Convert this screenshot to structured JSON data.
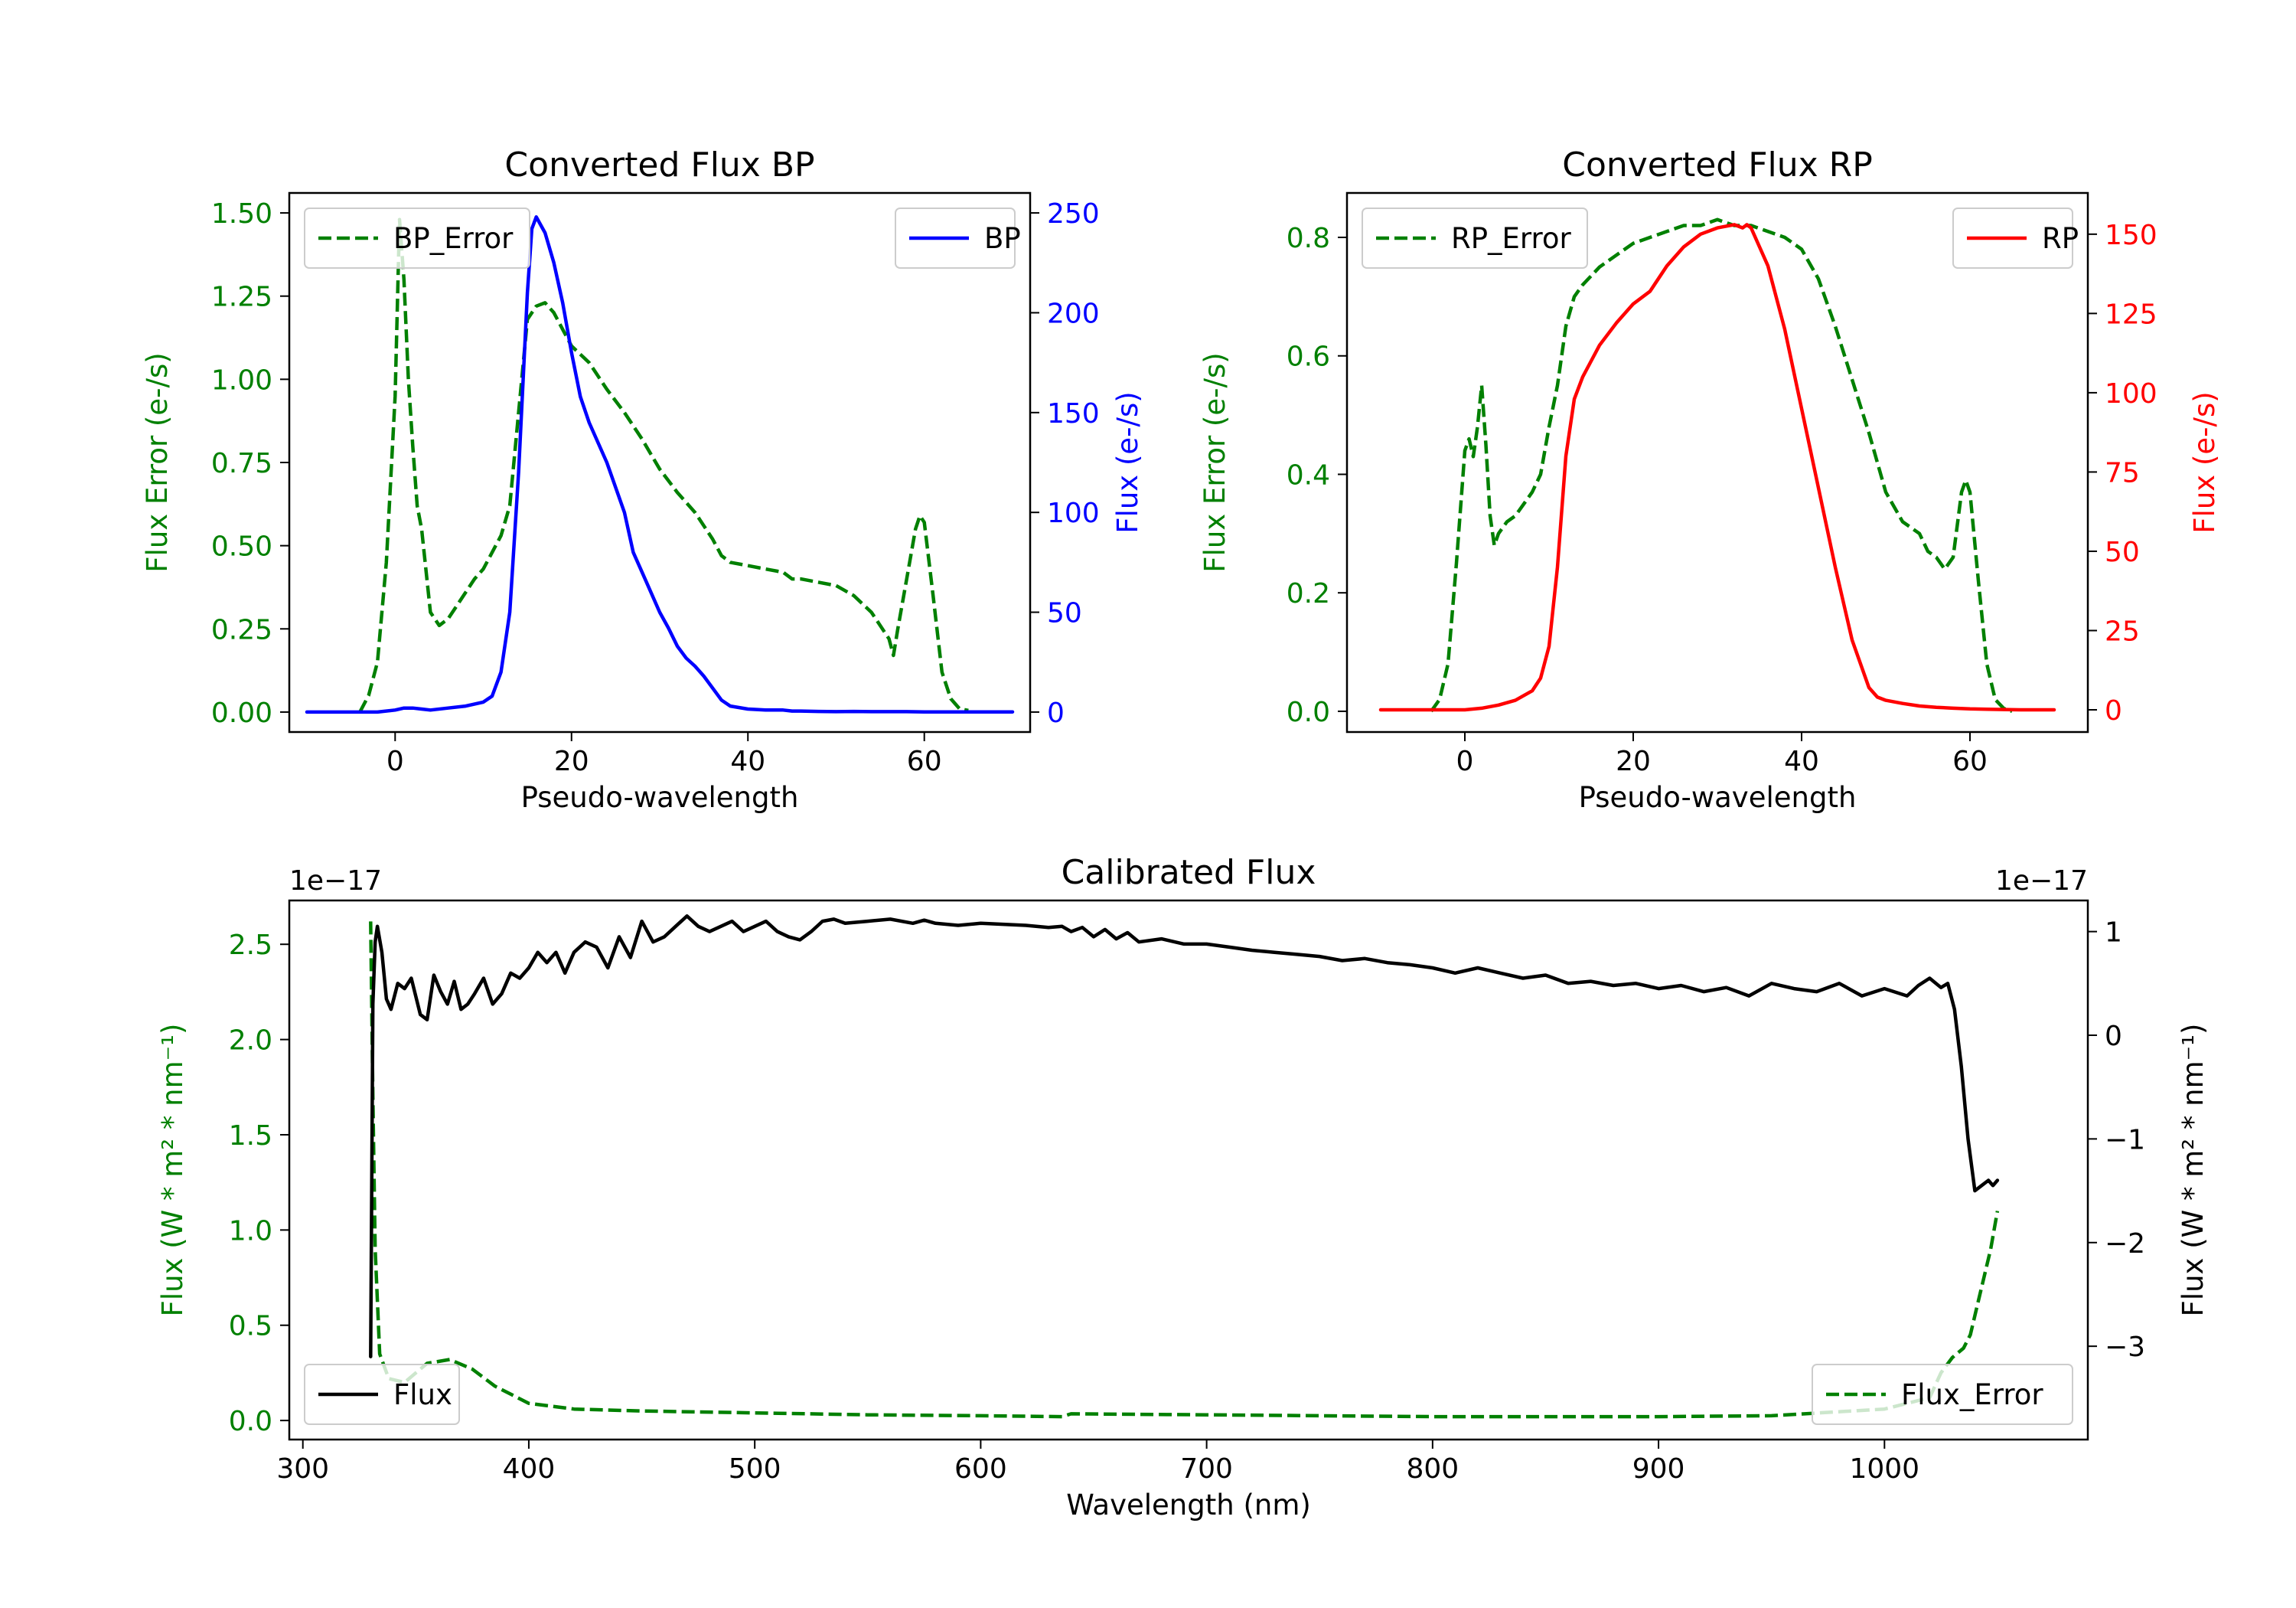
{
  "colors": {
    "green": "#008000",
    "blue": "#0000ff",
    "red": "#ff0000",
    "black": "#000000"
  },
  "chart_data": [
    {
      "id": "bp",
      "type": "line",
      "title": "Converted Flux BP",
      "xlabel": "Pseudo-wavelength",
      "ylabel_left": "Flux Error (e-/s)",
      "ylabel_right": "Flux (e-/s)",
      "xlim": [
        -12,
        72
      ],
      "ylim_left": [
        -0.06,
        1.56
      ],
      "ylim_right": [
        -10,
        260
      ],
      "xticks": [
        "0",
        "20",
        "40",
        "60"
      ],
      "yticks_left": [
        "0.00",
        "0.25",
        "0.50",
        "0.75",
        "1.00",
        "1.25",
        "1.50"
      ],
      "yticks_right": [
        "0",
        "50",
        "100",
        "150",
        "200",
        "250"
      ],
      "legend_left": "BP_Error",
      "legend_right": "BP",
      "series": [
        {
          "name": "BP_Error",
          "axis": "left",
          "color": "#008000",
          "style": "dashed",
          "x": [
            -4,
            -3,
            -2,
            -1,
            0,
            0.5,
            1,
            1.5,
            2,
            2.5,
            3,
            4,
            5,
            6,
            7,
            8,
            9,
            10,
            12,
            13,
            14,
            15,
            16,
            17,
            18,
            19,
            20,
            22,
            24,
            26,
            28,
            30,
            32,
            34,
            36,
            37,
            38,
            40,
            42,
            44,
            45,
            46,
            48,
            50,
            52,
            54,
            56,
            56.5,
            57,
            58,
            59,
            59.5,
            60,
            61,
            62,
            63,
            64,
            65
          ],
          "y": [
            0,
            0.05,
            0.15,
            0.45,
            0.95,
            1.48,
            1.3,
            1.0,
            0.8,
            0.62,
            0.55,
            0.3,
            0.26,
            0.28,
            0.32,
            0.36,
            0.4,
            0.43,
            0.53,
            0.62,
            0.9,
            1.18,
            1.22,
            1.23,
            1.2,
            1.15,
            1.1,
            1.05,
            0.97,
            0.9,
            0.82,
            0.73,
            0.66,
            0.6,
            0.52,
            0.47,
            0.45,
            0.44,
            0.43,
            0.42,
            0.4,
            0.4,
            0.39,
            0.38,
            0.35,
            0.3,
            0.22,
            0.17,
            0.25,
            0.4,
            0.55,
            0.59,
            0.57,
            0.35,
            0.12,
            0.04,
            0.01,
            0.005
          ]
        },
        {
          "name": "BP",
          "axis": "right",
          "color": "#0000ff",
          "style": "solid",
          "x": [
            -10,
            -5,
            -2,
            0,
            1,
            2,
            3,
            4,
            6,
            8,
            10,
            11,
            12,
            13,
            14,
            15,
            15.5,
            16,
            17,
            18,
            19,
            20,
            21,
            22,
            24,
            26,
            27,
            28,
            30,
            31,
            32,
            33,
            34,
            35,
            36,
            37,
            38,
            40,
            42,
            44,
            45,
            46,
            48,
            50,
            52,
            54,
            56,
            58,
            60,
            62,
            64,
            66,
            68,
            70
          ],
          "y": [
            0,
            0,
            0,
            1,
            2,
            2,
            1.5,
            1,
            2,
            3,
            5,
            8,
            20,
            50,
            120,
            210,
            242,
            248,
            240,
            225,
            205,
            180,
            158,
            145,
            125,
            100,
            80,
            70,
            50,
            42,
            33,
            27,
            23,
            18,
            12,
            6,
            3,
            1.5,
            1,
            1,
            0.5,
            0.5,
            0.3,
            0.2,
            0.3,
            0.2,
            0.2,
            0.2,
            0.1,
            0.1,
            0.1,
            0.1,
            0.1,
            0.1
          ]
        }
      ]
    },
    {
      "id": "rp",
      "type": "line",
      "title": "Converted Flux RP",
      "xlabel": "Pseudo-wavelength",
      "ylabel_left": "Flux Error (e-/s)",
      "ylabel_right": "Flux (e-/s)",
      "xlim": [
        -14,
        74
      ],
      "ylim_left": [
        -0.035,
        0.875
      ],
      "ylim_right": [
        -7,
        163
      ],
      "xticks": [
        "0",
        "20",
        "40",
        "60"
      ],
      "yticks_left": [
        "0.0",
        "0.2",
        "0.4",
        "0.6",
        "0.8"
      ],
      "yticks_right": [
        "0",
        "25",
        "50",
        "75",
        "100",
        "125",
        "150"
      ],
      "legend_left": "RP_Error",
      "legend_right": "RP",
      "series": [
        {
          "name": "RP_Error",
          "axis": "left",
          "color": "#008000",
          "style": "dashed",
          "x": [
            -4,
            -3,
            -2,
            -1,
            0,
            0.5,
            1,
            1.5,
            2,
            2.5,
            3,
            3.5,
            4,
            5,
            6,
            7,
            8,
            9,
            10,
            11,
            12,
            13,
            14,
            16,
            18,
            20,
            22,
            24,
            26,
            28,
            30,
            32,
            34,
            36,
            38,
            40,
            42,
            44,
            46,
            48,
            50,
            52,
            53,
            54,
            55,
            56,
            57,
            58,
            59,
            59.5,
            60,
            61,
            62,
            63,
            64,
            65
          ],
          "y": [
            0,
            0.02,
            0.08,
            0.25,
            0.44,
            0.46,
            0.43,
            0.48,
            0.55,
            0.45,
            0.33,
            0.28,
            0.3,
            0.32,
            0.33,
            0.35,
            0.37,
            0.4,
            0.48,
            0.55,
            0.65,
            0.7,
            0.72,
            0.75,
            0.77,
            0.79,
            0.8,
            0.81,
            0.82,
            0.82,
            0.83,
            0.82,
            0.82,
            0.81,
            0.8,
            0.78,
            0.73,
            0.65,
            0.56,
            0.47,
            0.37,
            0.32,
            0.31,
            0.3,
            0.27,
            0.26,
            0.24,
            0.26,
            0.37,
            0.39,
            0.37,
            0.22,
            0.08,
            0.02,
            0.005,
            0
          ]
        },
        {
          "name": "RP",
          "axis": "right",
          "color": "#ff0000",
          "style": "solid",
          "x": [
            -10,
            -5,
            0,
            2,
            4,
            6,
            8,
            9,
            10,
            11,
            12,
            13,
            14,
            15,
            16,
            18,
            20,
            22,
            24,
            26,
            28,
            30,
            32,
            33,
            33.5,
            34,
            36,
            38,
            40,
            42,
            44,
            46,
            48,
            49,
            50,
            52,
            54,
            56,
            58,
            60,
            62,
            64,
            66,
            70
          ],
          "y": [
            0,
            0,
            0,
            0.5,
            1.5,
            3,
            6,
            10,
            20,
            45,
            80,
            98,
            105,
            110,
            115,
            122,
            128,
            132,
            140,
            146,
            150,
            152,
            153,
            152,
            153,
            152,
            140,
            120,
            95,
            70,
            45,
            22,
            7,
            4,
            3,
            2,
            1.2,
            0.8,
            0.5,
            0.3,
            0.2,
            0.1,
            0,
            0
          ]
        }
      ]
    },
    {
      "id": "cal",
      "type": "line",
      "title": "Calibrated Flux",
      "xlabel": "Wavelength (nm)",
      "ylabel_left": "Flux (W * m² * nm⁻¹)",
      "ylabel_right": "Flux (W * m² * nm⁻¹)",
      "offset_left": "1e−17",
      "offset_right": "1e−17",
      "xlim": [
        294,
        1090
      ],
      "ylim_left": [
        -0.1,
        2.73
      ],
      "ylim_right": [
        -3.9,
        1.3
      ],
      "xticks": [
        "300",
        "400",
        "500",
        "600",
        "700",
        "800",
        "900",
        "1000"
      ],
      "yticks_left": [
        "0.0",
        "0.5",
        "1.0",
        "1.5",
        "2.0",
        "2.5"
      ],
      "yticks_right": [
        "−3",
        "−2",
        "−1",
        "0",
        "1"
      ],
      "legend_left": "Flux",
      "legend_right": "Flux_Error",
      "series": [
        {
          "name": "Flux_Error",
          "axis": "left",
          "color": "#008000",
          "style": "dashed",
          "x": [
            330,
            331,
            332,
            334,
            338,
            345,
            355,
            365,
            375,
            385,
            400,
            420,
            450,
            500,
            550,
            600,
            636,
            640,
            700,
            750,
            800,
            850,
            900,
            950,
            1000,
            1020,
            1025,
            1030,
            1035,
            1038,
            1041,
            1044,
            1047,
            1050
          ],
          "y": [
            2.62,
            1.7,
            0.9,
            0.35,
            0.22,
            0.2,
            0.3,
            0.32,
            0.27,
            0.18,
            0.09,
            0.06,
            0.05,
            0.04,
            0.03,
            0.025,
            0.02,
            0.035,
            0.03,
            0.025,
            0.02,
            0.02,
            0.02,
            0.025,
            0.06,
            0.12,
            0.25,
            0.33,
            0.38,
            0.45,
            0.6,
            0.75,
            0.9,
            1.1
          ]
        },
        {
          "name": "Flux",
          "axis": "right",
          "color": "#000000",
          "style": "solid",
          "x": [
            330,
            331,
            332,
            333,
            335,
            337,
            339,
            342,
            345,
            348,
            352,
            355,
            358,
            361,
            364,
            367,
            370,
            373,
            376,
            380,
            384,
            388,
            392,
            396,
            400,
            404,
            408,
            412,
            416,
            420,
            425,
            430,
            435,
            440,
            445,
            450,
            455,
            460,
            465,
            470,
            475,
            480,
            485,
            490,
            495,
            500,
            505,
            510,
            515,
            520,
            525,
            530,
            535,
            540,
            550,
            560,
            570,
            575,
            580,
            590,
            600,
            610,
            620,
            630,
            636,
            640,
            645,
            650,
            655,
            660,
            665,
            670,
            680,
            690,
            700,
            710,
            720,
            730,
            740,
            750,
            760,
            770,
            780,
            790,
            800,
            810,
            820,
            830,
            840,
            850,
            860,
            870,
            880,
            890,
            900,
            910,
            920,
            930,
            940,
            950,
            960,
            970,
            980,
            990,
            1000,
            1010,
            1015,
            1020,
            1025,
            1028,
            1031,
            1034,
            1037,
            1040,
            1043,
            1046,
            1048,
            1050
          ],
          "y": [
            -3.1,
            0.3,
            0.9,
            1.05,
            0.8,
            0.35,
            0.25,
            0.5,
            0.45,
            0.55,
            0.2,
            0.15,
            0.58,
            0.42,
            0.3,
            0.52,
            0.25,
            0.3,
            0.4,
            0.55,
            0.3,
            0.4,
            0.6,
            0.55,
            0.65,
            0.8,
            0.7,
            0.8,
            0.6,
            0.8,
            0.9,
            0.85,
            0.65,
            0.95,
            0.75,
            1.1,
            0.9,
            0.95,
            1.05,
            1.15,
            1.05,
            1.0,
            1.05,
            1.1,
            1.0,
            1.05,
            1.1,
            1.0,
            0.95,
            0.92,
            1.0,
            1.1,
            1.12,
            1.08,
            1.1,
            1.12,
            1.08,
            1.11,
            1.08,
            1.06,
            1.08,
            1.07,
            1.06,
            1.04,
            1.05,
            1.0,
            1.04,
            0.95,
            1.02,
            0.93,
            0.99,
            0.9,
            0.93,
            0.88,
            0.88,
            0.85,
            0.82,
            0.8,
            0.78,
            0.76,
            0.72,
            0.74,
            0.7,
            0.68,
            0.65,
            0.6,
            0.65,
            0.6,
            0.55,
            0.58,
            0.5,
            0.52,
            0.48,
            0.5,
            0.45,
            0.48,
            0.42,
            0.46,
            0.38,
            0.5,
            0.45,
            0.42,
            0.5,
            0.38,
            0.45,
            0.38,
            0.48,
            0.55,
            0.46,
            0.5,
            0.25,
            -0.3,
            -1.0,
            -1.5,
            -1.45,
            -1.4,
            -1.45,
            -1.4
          ]
        }
      ]
    }
  ]
}
